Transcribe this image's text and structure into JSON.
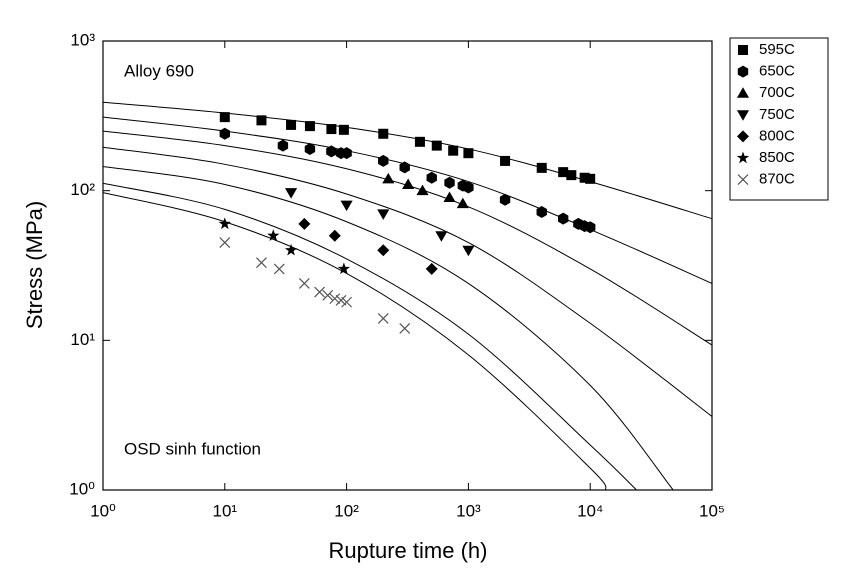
{
  "chart_data": {
    "type": "scatter",
    "x_label": "Rupture time (h)",
    "y_label": "Stress (MPa)",
    "annotations": [
      "Alloy 690",
      "OSD sinh function"
    ],
    "log_x": true,
    "log_y": true,
    "xlim": [
      1,
      100000
    ],
    "ylim": [
      1,
      1000
    ],
    "xticks": [
      {
        "value": 1,
        "label": "10⁰"
      },
      {
        "value": 10,
        "label": "10¹"
      },
      {
        "value": 100,
        "label": "10²"
      },
      {
        "value": 1000,
        "label": "10³"
      },
      {
        "value": 10000,
        "label": "10⁴"
      },
      {
        "value": 100000,
        "label": "10⁵"
      }
    ],
    "yticks": [
      {
        "value": 1,
        "label": "10⁰"
      },
      {
        "value": 10,
        "label": "10¹"
      },
      {
        "value": 100,
        "label": "10²"
      },
      {
        "value": 1000,
        "label": "10³"
      }
    ],
    "legend_position": "outside-right",
    "series": [
      {
        "name": "595C",
        "marker": "square",
        "color": "#000000",
        "x": [
          10,
          20,
          35,
          50,
          75,
          95,
          200,
          400,
          550,
          750,
          1000,
          2000,
          4000,
          6000,
          7000,
          9000,
          10000
        ],
        "values": [
          310,
          295,
          275,
          270,
          258,
          255,
          240,
          212,
          200,
          185,
          178,
          158,
          142,
          133,
          127,
          122,
          120
        ]
      },
      {
        "name": "650C",
        "marker": "hexagon",
        "color": "#000000",
        "x": [
          10,
          30,
          50,
          75,
          90,
          100,
          200,
          300,
          500,
          700,
          900,
          1000,
          2000,
          4000,
          6000,
          8000,
          9000,
          10000
        ],
        "values": [
          240,
          200,
          190,
          183,
          178,
          178,
          158,
          143,
          122,
          113,
          108,
          105,
          87,
          72,
          65,
          60,
          58,
          57
        ]
      },
      {
        "name": "700C",
        "marker": "triangle-up",
        "color": "#000000",
        "x": [
          220,
          320,
          420,
          700,
          900
        ],
        "values": [
          120,
          110,
          100,
          90,
          82
        ]
      },
      {
        "name": "750C",
        "marker": "triangle-down",
        "color": "#000000",
        "x": [
          35,
          100,
          200,
          600,
          1000
        ],
        "values": [
          97,
          80,
          70,
          50,
          40
        ]
      },
      {
        "name": "800C",
        "marker": "diamond",
        "color": "#000000",
        "x": [
          45,
          80,
          200,
          500
        ],
        "values": [
          60,
          50,
          40,
          30
        ]
      },
      {
        "name": "850C",
        "marker": "star",
        "color": "#000000",
        "x": [
          10,
          25,
          35,
          95
        ],
        "values": [
          60,
          50,
          40,
          30
        ]
      },
      {
        "name": "870C",
        "marker": "x",
        "color": "#555555",
        "x": [
          10,
          20,
          28,
          45,
          60,
          70,
          80,
          90,
          100,
          200,
          300
        ],
        "values": [
          45,
          33,
          30,
          24,
          21,
          20,
          19,
          18.5,
          18,
          14,
          12
        ]
      }
    ],
    "fit_curves": [
      {
        "x": [
          1,
          10,
          100,
          1000,
          10000,
          100000
        ],
        "values": [
          390,
          330,
          265,
          190,
          115,
          65
        ]
      },
      {
        "x": [
          1,
          10,
          100,
          1000,
          10000,
          100000
        ],
        "values": [
          310,
          250,
          185,
          115,
          55,
          24
        ]
      },
      {
        "x": [
          1,
          10,
          100,
          1000,
          10000,
          100000
        ],
        "values": [
          250,
          200,
          140,
          78,
          30,
          9.3
        ]
      },
      {
        "x": [
          1,
          10,
          100,
          1000,
          10000,
          100000
        ],
        "values": [
          195,
          150,
          95,
          45,
          13,
          3.1
        ]
      },
      {
        "x": [
          1,
          10,
          100,
          1000,
          10000,
          48000
        ],
        "values": [
          145,
          110,
          62,
          24,
          5,
          1
        ]
      },
      {
        "x": [
          1,
          10,
          100,
          1000,
          10000,
          24000
        ],
        "values": [
          112,
          75,
          35,
          11,
          2,
          1
        ]
      },
      {
        "x": [
          1,
          10,
          100,
          1000,
          10000,
          13500
        ],
        "values": [
          97,
          62,
          28,
          8,
          1.4,
          1
        ]
      }
    ],
    "curve_color": "#000000"
  }
}
